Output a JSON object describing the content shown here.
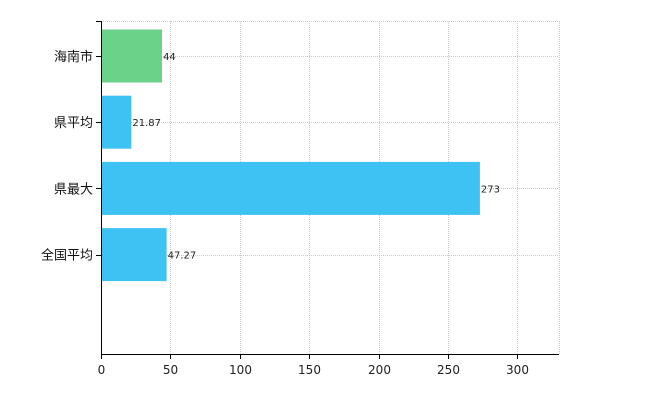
{
  "chart_data": {
    "type": "bar",
    "orientation": "horizontal",
    "title": "",
    "xlabel": "",
    "ylabel": "",
    "categories": [
      "海南市",
      "県平均",
      "県最大",
      "全国平均"
    ],
    "values": [
      44,
      21.87,
      273,
      47.27
    ],
    "value_labels": [
      "44",
      "21.87",
      "273",
      "47.27"
    ],
    "bar_colors": [
      "#6bd28a",
      "#3ec2f4",
      "#3ec2f4",
      "#3ec2f4"
    ],
    "xlim": [
      0,
      330
    ],
    "xticks": [
      0,
      50,
      100,
      150,
      200,
      250,
      300
    ],
    "xtick_labels": [
      "0",
      "50",
      "100",
      "150",
      "200",
      "250",
      "300"
    ],
    "grid": true,
    "grid_style": "dotted",
    "grid_color": "#c8c8c8",
    "axis_color": "#000000"
  }
}
